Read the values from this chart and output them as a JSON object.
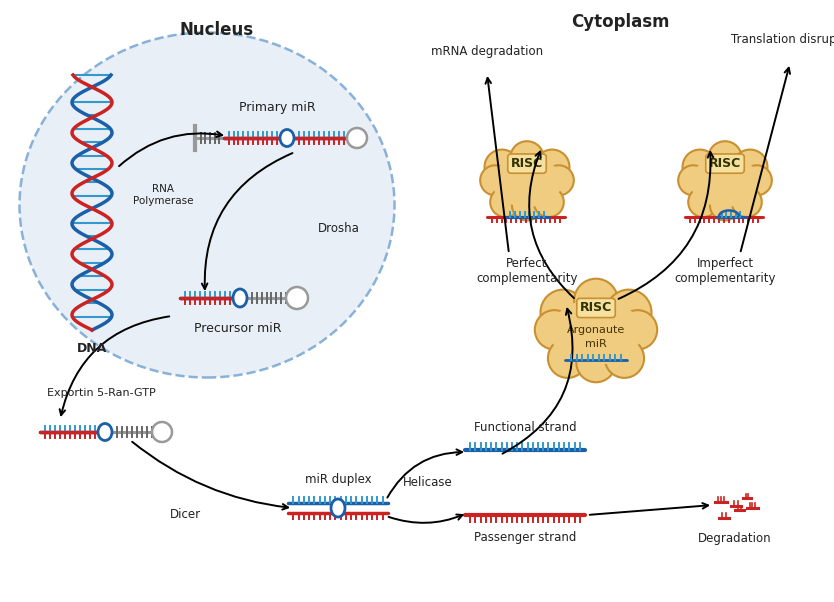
{
  "title_nucleus": "Nucleus",
  "title_cytoplasm": "Cytoplasm",
  "label_dna": "DNA",
  "label_primary_mir": "Primary miR",
  "label_precursor_mir": "Precursor miR",
  "label_rna_polymerase": "RNA\nPolymerase",
  "label_drosha": "Drosha",
  "label_exportin": "Exportin 5-Ran-GTP",
  "label_dicer": "Dicer",
  "label_mir_duplex": "miR duplex",
  "label_helicase": "Helicase",
  "label_functional_strand": "Functional strand",
  "label_passenger_strand": "Passenger strand",
  "label_degradation": "Degradation",
  "label_argonaute": "Argonaute",
  "label_mir": "miR",
  "label_risc": "RISC",
  "label_perfect": "Perfect\ncomplementarity",
  "label_imperfect": "Imperfect\ncomplementarity",
  "label_mrna_degradation": "mRNA degradation",
  "label_translation_disruption": "Translation disruption",
  "color_blue": "#1a5fa8",
  "color_red": "#cc2222",
  "color_gray": "#999999",
  "color_gray_dark": "#666666",
  "color_nucleus_bg": "#e6eef7",
  "color_nucleus_border": "#7eaad4",
  "color_risc_outer": "#c89030",
  "color_risc_inner": "#f0cc80",
  "color_risc_label_bg": "#f5e0a0",
  "color_cyan": "#3399cc",
  "color_text": "#222222",
  "color_label": "#444444"
}
